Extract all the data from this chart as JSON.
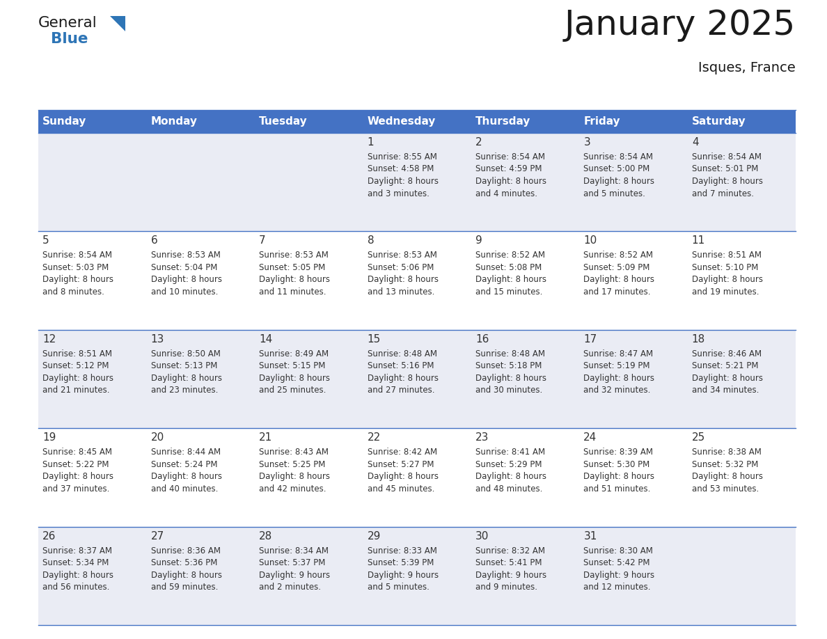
{
  "title": "January 2025",
  "subtitle": "Isques, France",
  "header_bg": "#4472C4",
  "header_text": "#FFFFFF",
  "cell_bg_odd": "#EAECF4",
  "cell_bg_even": "#FFFFFF",
  "row_line_color": "#4472C4",
  "text_color": "#333333",
  "days_of_week": [
    "Sunday",
    "Monday",
    "Tuesday",
    "Wednesday",
    "Thursday",
    "Friday",
    "Saturday"
  ],
  "weeks": [
    [
      {
        "day": "",
        "info": ""
      },
      {
        "day": "",
        "info": ""
      },
      {
        "day": "",
        "info": ""
      },
      {
        "day": "1",
        "info": "Sunrise: 8:55 AM\nSunset: 4:58 PM\nDaylight: 8 hours\nand 3 minutes."
      },
      {
        "day": "2",
        "info": "Sunrise: 8:54 AM\nSunset: 4:59 PM\nDaylight: 8 hours\nand 4 minutes."
      },
      {
        "day": "3",
        "info": "Sunrise: 8:54 AM\nSunset: 5:00 PM\nDaylight: 8 hours\nand 5 minutes."
      },
      {
        "day": "4",
        "info": "Sunrise: 8:54 AM\nSunset: 5:01 PM\nDaylight: 8 hours\nand 7 minutes."
      }
    ],
    [
      {
        "day": "5",
        "info": "Sunrise: 8:54 AM\nSunset: 5:03 PM\nDaylight: 8 hours\nand 8 minutes."
      },
      {
        "day": "6",
        "info": "Sunrise: 8:53 AM\nSunset: 5:04 PM\nDaylight: 8 hours\nand 10 minutes."
      },
      {
        "day": "7",
        "info": "Sunrise: 8:53 AM\nSunset: 5:05 PM\nDaylight: 8 hours\nand 11 minutes."
      },
      {
        "day": "8",
        "info": "Sunrise: 8:53 AM\nSunset: 5:06 PM\nDaylight: 8 hours\nand 13 minutes."
      },
      {
        "day": "9",
        "info": "Sunrise: 8:52 AM\nSunset: 5:08 PM\nDaylight: 8 hours\nand 15 minutes."
      },
      {
        "day": "10",
        "info": "Sunrise: 8:52 AM\nSunset: 5:09 PM\nDaylight: 8 hours\nand 17 minutes."
      },
      {
        "day": "11",
        "info": "Sunrise: 8:51 AM\nSunset: 5:10 PM\nDaylight: 8 hours\nand 19 minutes."
      }
    ],
    [
      {
        "day": "12",
        "info": "Sunrise: 8:51 AM\nSunset: 5:12 PM\nDaylight: 8 hours\nand 21 minutes."
      },
      {
        "day": "13",
        "info": "Sunrise: 8:50 AM\nSunset: 5:13 PM\nDaylight: 8 hours\nand 23 minutes."
      },
      {
        "day": "14",
        "info": "Sunrise: 8:49 AM\nSunset: 5:15 PM\nDaylight: 8 hours\nand 25 minutes."
      },
      {
        "day": "15",
        "info": "Sunrise: 8:48 AM\nSunset: 5:16 PM\nDaylight: 8 hours\nand 27 minutes."
      },
      {
        "day": "16",
        "info": "Sunrise: 8:48 AM\nSunset: 5:18 PM\nDaylight: 8 hours\nand 30 minutes."
      },
      {
        "day": "17",
        "info": "Sunrise: 8:47 AM\nSunset: 5:19 PM\nDaylight: 8 hours\nand 32 minutes."
      },
      {
        "day": "18",
        "info": "Sunrise: 8:46 AM\nSunset: 5:21 PM\nDaylight: 8 hours\nand 34 minutes."
      }
    ],
    [
      {
        "day": "19",
        "info": "Sunrise: 8:45 AM\nSunset: 5:22 PM\nDaylight: 8 hours\nand 37 minutes."
      },
      {
        "day": "20",
        "info": "Sunrise: 8:44 AM\nSunset: 5:24 PM\nDaylight: 8 hours\nand 40 minutes."
      },
      {
        "day": "21",
        "info": "Sunrise: 8:43 AM\nSunset: 5:25 PM\nDaylight: 8 hours\nand 42 minutes."
      },
      {
        "day": "22",
        "info": "Sunrise: 8:42 AM\nSunset: 5:27 PM\nDaylight: 8 hours\nand 45 minutes."
      },
      {
        "day": "23",
        "info": "Sunrise: 8:41 AM\nSunset: 5:29 PM\nDaylight: 8 hours\nand 48 minutes."
      },
      {
        "day": "24",
        "info": "Sunrise: 8:39 AM\nSunset: 5:30 PM\nDaylight: 8 hours\nand 51 minutes."
      },
      {
        "day": "25",
        "info": "Sunrise: 8:38 AM\nSunset: 5:32 PM\nDaylight: 8 hours\nand 53 minutes."
      }
    ],
    [
      {
        "day": "26",
        "info": "Sunrise: 8:37 AM\nSunset: 5:34 PM\nDaylight: 8 hours\nand 56 minutes."
      },
      {
        "day": "27",
        "info": "Sunrise: 8:36 AM\nSunset: 5:36 PM\nDaylight: 8 hours\nand 59 minutes."
      },
      {
        "day": "28",
        "info": "Sunrise: 8:34 AM\nSunset: 5:37 PM\nDaylight: 9 hours\nand 2 minutes."
      },
      {
        "day": "29",
        "info": "Sunrise: 8:33 AM\nSunset: 5:39 PM\nDaylight: 9 hours\nand 5 minutes."
      },
      {
        "day": "30",
        "info": "Sunrise: 8:32 AM\nSunset: 5:41 PM\nDaylight: 9 hours\nand 9 minutes."
      },
      {
        "day": "31",
        "info": "Sunrise: 8:30 AM\nSunset: 5:42 PM\nDaylight: 9 hours\nand 12 minutes."
      },
      {
        "day": "",
        "info": ""
      }
    ]
  ],
  "logo_text1": "General",
  "logo_text2": "Blue",
  "logo_color1": "#1a1a1a",
  "logo_color2": "#2E75B6",
  "logo_triangle_color": "#2E75B6",
  "title_fontsize": 36,
  "subtitle_fontsize": 14,
  "header_fontsize": 11,
  "day_num_fontsize": 11,
  "info_fontsize": 8.5
}
